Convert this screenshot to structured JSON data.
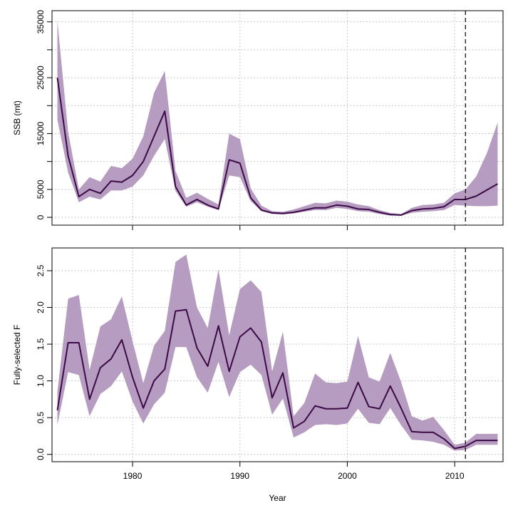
{
  "colors": {
    "band": "#b69cc0",
    "line": "#3c0a46",
    "grid": "#b5b5b5",
    "axis": "#000000"
  },
  "chart_data": [
    {
      "type": "line",
      "panel": "ssb",
      "ylabel": "SSB (mt)",
      "xlim": [
        1972.5,
        2014.5
      ],
      "ylim": [
        -1400,
        37000
      ],
      "x_ticks": [
        1980,
        1990,
        2000,
        2010
      ],
      "y_ticks": [
        0,
        5000,
        10000,
        15000,
        20000,
        25000,
        30000,
        35000
      ],
      "y_tick_labels": [
        "0",
        "5000",
        "15000",
        "25000",
        "35000"
      ],
      "y_tick_labels_at": [
        0,
        5000,
        15000,
        25000,
        35000
      ],
      "grid": true,
      "vline_dashed": 2011,
      "x": [
        1973,
        1974,
        1975,
        1976,
        1977,
        1978,
        1979,
        1980,
        1981,
        1982,
        1983,
        1984,
        1985,
        1986,
        1987,
        1988,
        1989,
        1990,
        1991,
        1992,
        1993,
        1994,
        1995,
        1996,
        1997,
        1998,
        1999,
        2000,
        2001,
        2002,
        2003,
        2004,
        2005,
        2006,
        2007,
        2008,
        2009,
        2010,
        2011,
        2012,
        2013,
        2014
      ],
      "series": [
        {
          "name": "estimate",
          "values": [
            25000,
            11000,
            3700,
            5000,
            4300,
            6500,
            6300,
            7500,
            10000,
            14500,
            19000,
            5500,
            2200,
            3200,
            2200,
            1500,
            10300,
            9700,
            3500,
            1300,
            800,
            700,
            900,
            1300,
            1700,
            1700,
            2200,
            2000,
            1500,
            1400,
            900,
            500,
            400,
            1200,
            1500,
            1600,
            1900,
            3200,
            3200,
            3800,
            4900,
            6000
          ]
        },
        {
          "name": "lower",
          "values": [
            17500,
            8000,
            2700,
            3700,
            3200,
            4800,
            4800,
            5500,
            7500,
            11000,
            14000,
            4700,
            1900,
            2700,
            1900,
            1300,
            7500,
            7200,
            2900,
            1100,
            600,
            500,
            700,
            1000,
            1300,
            1300,
            1700,
            1500,
            1100,
            1000,
            600,
            300,
            300,
            800,
            1000,
            1100,
            1300,
            2200,
            2100,
            2000,
            2000,
            2100
          ]
        },
        {
          "name": "upper",
          "values": [
            35200,
            15300,
            5000,
            7200,
            6400,
            9200,
            8800,
            10500,
            14500,
            22300,
            26200,
            8300,
            3500,
            4400,
            3300,
            2300,
            15000,
            14000,
            5200,
            2100,
            1100,
            1000,
            1400,
            2000,
            2600,
            2500,
            3000,
            2800,
            2300,
            2000,
            1300,
            800,
            600,
            1700,
            2200,
            2300,
            2600,
            4300,
            5000,
            7300,
            11500,
            17000
          ]
        }
      ]
    },
    {
      "type": "line",
      "panel": "f",
      "xlabel": "Year",
      "ylabel": "Fully-selected F",
      "xlim": [
        1972.5,
        2014.5
      ],
      "ylim": [
        -0.1,
        2.81
      ],
      "x_ticks": [
        1980,
        1990,
        2000,
        2010
      ],
      "x_tick_labels": [
        "1980",
        "1990",
        "2000",
        "2010"
      ],
      "y_ticks": [
        0,
        0.5,
        1.0,
        1.5,
        2.0,
        2.5
      ],
      "y_tick_labels": [
        "0.0",
        "0.5",
        "1.0",
        "1.5",
        "2.0",
        "2.5"
      ],
      "grid": true,
      "vline_dashed": 2011,
      "x": [
        1973,
        1974,
        1975,
        1976,
        1977,
        1978,
        1979,
        1980,
        1981,
        1982,
        1983,
        1984,
        1985,
        1986,
        1987,
        1988,
        1989,
        1990,
        1991,
        1992,
        1993,
        1994,
        1995,
        1996,
        1997,
        1998,
        1999,
        2000,
        2001,
        2002,
        2003,
        2004,
        2005,
        2006,
        2007,
        2008,
        2009,
        2010,
        2011,
        2012,
        2013,
        2014
      ],
      "series": [
        {
          "name": "estimate",
          "values": [
            0.6,
            1.52,
            1.52,
            0.75,
            1.18,
            1.3,
            1.56,
            1.05,
            0.63,
            1.0,
            1.16,
            1.95,
            1.97,
            1.45,
            1.2,
            1.75,
            1.13,
            1.6,
            1.72,
            1.53,
            0.77,
            1.11,
            0.36,
            0.45,
            0.66,
            0.62,
            0.62,
            0.63,
            0.98,
            0.65,
            0.62,
            0.93,
            0.63,
            0.31,
            0.3,
            0.3,
            0.21,
            0.08,
            0.11,
            0.19,
            0.19,
            0.19
          ]
        },
        {
          "name": "lower",
          "values": [
            0.4,
            1.12,
            1.08,
            0.52,
            0.82,
            0.93,
            1.13,
            0.72,
            0.42,
            0.68,
            0.84,
            1.46,
            1.46,
            1.05,
            0.84,
            1.26,
            0.78,
            1.12,
            1.22,
            1.08,
            0.54,
            0.76,
            0.23,
            0.3,
            0.4,
            0.41,
            0.4,
            0.42,
            0.62,
            0.43,
            0.41,
            0.63,
            0.4,
            0.2,
            0.19,
            0.17,
            0.13,
            0.05,
            0.06,
            0.13,
            0.13,
            0.13
          ]
        },
        {
          "name": "upper",
          "values": [
            0.85,
            2.12,
            2.17,
            1.15,
            1.74,
            1.84,
            2.15,
            1.54,
            0.97,
            1.48,
            1.68,
            2.62,
            2.72,
            2.0,
            1.72,
            2.52,
            1.62,
            2.25,
            2.37,
            2.21,
            1.13,
            1.67,
            0.52,
            0.7,
            1.1,
            0.98,
            0.97,
            0.99,
            1.61,
            1.05,
            0.99,
            1.38,
            0.99,
            0.52,
            0.46,
            0.51,
            0.33,
            0.13,
            0.16,
            0.28,
            0.28,
            0.28
          ]
        }
      ]
    }
  ]
}
